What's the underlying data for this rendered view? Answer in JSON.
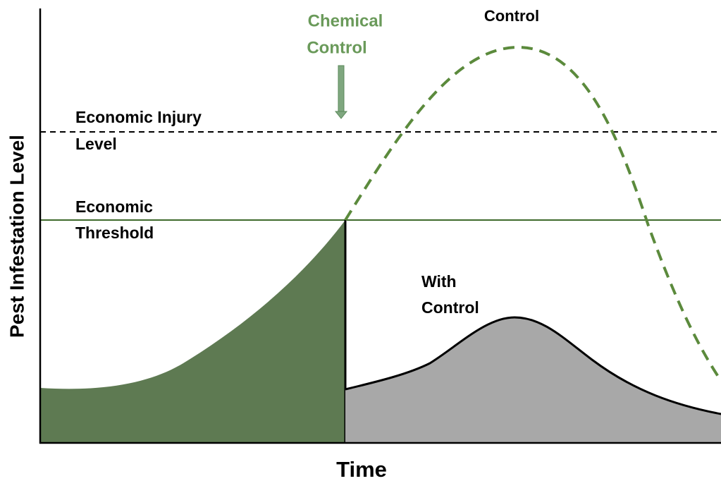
{
  "axes": {
    "y_label": "Pest Infestation Level",
    "x_label": "Time"
  },
  "annotations": {
    "chemical_control": [
      "Chemical",
      "Control"
    ],
    "without_control": [
      "Control"
    ],
    "economic_injury_level": [
      "Economic Injury",
      "Level"
    ],
    "economic_threshold": [
      "Economic",
      "Threshold"
    ],
    "with_control": [
      "With",
      "Control"
    ]
  }
}
